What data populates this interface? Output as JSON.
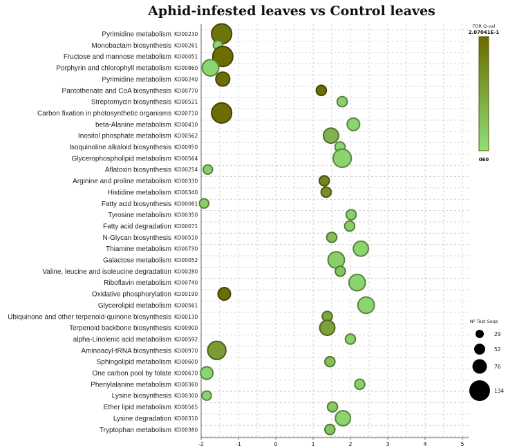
{
  "chart_data": {
    "type": "scatter",
    "title": "Aphid-infested leaves vs Control leaves",
    "xlim": [
      -2,
      5.2
    ],
    "x_ticks": [
      "-2",
      "-1",
      "0",
      "1",
      "2",
      "3",
      "4",
      "5"
    ],
    "grid": true,
    "color_legend": {
      "title": "FDR Q-val",
      "max_label": "2.07041E-1",
      "min_label": "0E0",
      "max_color": "#6b6a00",
      "min_color": "#8fe07a",
      "placement": "top-right"
    },
    "size_legend": {
      "title": "Nº Test Seqs",
      "entries": [
        "29",
        "52",
        "76",
        "134"
      ],
      "placement": "right"
    },
    "points": [
      {
        "pathway": "Pyrimidine metabolism",
        "code": "KO00230",
        "x": -1.45,
        "size": 134,
        "q": 0.19
      },
      {
        "pathway": "Monobactam biosynthesis",
        "code": "KO00261",
        "x": -1.55,
        "size": 29,
        "q": 0.02
      },
      {
        "pathway": "Fructose and mannose metabolism",
        "code": "KO00051",
        "x": -1.42,
        "size": 134,
        "q": 0.2
      },
      {
        "pathway": "Porphyrin and chlorophyll metabolism",
        "code": "KO00860",
        "x": -1.75,
        "size": 90,
        "q": 0.02
      },
      {
        "pathway": "Pyrimidine metabolism",
        "code": "KO00240",
        "x": -1.42,
        "size": 65,
        "q": 0.2
      },
      {
        "pathway": "Pantothenate and CoA biosynthesis",
        "code": "KO00770",
        "x": 1.22,
        "size": 34,
        "q": 0.2
      },
      {
        "pathway": "Streptomycin biosynthesis",
        "code": "KO00521",
        "x": 1.78,
        "size": 34,
        "q": 0.03
      },
      {
        "pathway": "Carbon fixation in photosynthetic organisms",
        "code": "KO00710",
        "x": -1.45,
        "size": 134,
        "q": 0.2
      },
      {
        "pathway": "beta-Alanine metabolism",
        "code": "KO00410",
        "x": 2.08,
        "size": 52,
        "q": 0.02
      },
      {
        "pathway": "Inositol phosphate metabolism",
        "code": "KO00562",
        "x": 1.48,
        "size": 76,
        "q": 0.08
      },
      {
        "pathway": "Isoquinoline alkaloid biosynthesis",
        "code": "KO00950",
        "x": 1.72,
        "size": 34,
        "q": 0.02
      },
      {
        "pathway": "Glycerophospholipid metabolism",
        "code": "KO00564",
        "x": 1.78,
        "size": 110,
        "q": 0.02
      },
      {
        "pathway": "Aflatoxin biosynthesis",
        "code": "KO00254",
        "x": -1.82,
        "size": 29,
        "q": 0.03
      },
      {
        "pathway": "Arginine and proline metabolism",
        "code": "KO00330",
        "x": 1.3,
        "size": 34,
        "q": 0.16
      },
      {
        "pathway": "Histidine metabolism",
        "code": "KO00340",
        "x": 1.35,
        "size": 34,
        "q": 0.14
      },
      {
        "pathway": "Fatty acid biosynthesis",
        "code": "KO00061",
        "x": -1.92,
        "size": 29,
        "q": 0.03
      },
      {
        "pathway": "Tyrosine metabolism",
        "code": "KO00350",
        "x": 2.02,
        "size": 34,
        "q": 0.03
      },
      {
        "pathway": "Fatty acid degradation",
        "code": "KO00071",
        "x": 1.98,
        "size": 34,
        "q": 0.03
      },
      {
        "pathway": "N-Glycan biosynthesis",
        "code": "KO00510",
        "x": 1.5,
        "size": 34,
        "q": 0.06
      },
      {
        "pathway": "Thiamine metabolism",
        "code": "KO00730",
        "x": 2.28,
        "size": 76,
        "q": 0.02
      },
      {
        "pathway": "Galactose metabolism",
        "code": "KO00052",
        "x": 1.62,
        "size": 90,
        "q": 0.03
      },
      {
        "pathway": "Valine, leucine and isoleucine degradation",
        "code": "KO00280",
        "x": 1.73,
        "size": 34,
        "q": 0.05
      },
      {
        "pathway": "Riboflavin metabolism",
        "code": "KO00740",
        "x": 2.18,
        "size": 90,
        "q": 0.02
      },
      {
        "pathway": "Oxidative phosphorylation",
        "code": "KO00190",
        "x": -1.38,
        "size": 52,
        "q": 0.2
      },
      {
        "pathway": "Glycerolipid metabolism",
        "code": "KO00561",
        "x": 2.42,
        "size": 90,
        "q": 0.02
      },
      {
        "pathway": "Ubiquinone and other terpenoid-quinone biosynthesis",
        "code": "KO00130",
        "x": 1.38,
        "size": 34,
        "q": 0.1
      },
      {
        "pathway": "Terpenoid backbone biosynthesis",
        "code": "KO00900",
        "x": 1.38,
        "size": 76,
        "q": 0.11
      },
      {
        "pathway": "alpha-Linolenic acid metabolism",
        "code": "KO00592",
        "x": 2.0,
        "size": 34,
        "q": 0.03
      },
      {
        "pathway": "Aminoacyl-tRNA biosynthesis",
        "code": "KO00970",
        "x": -1.58,
        "size": 110,
        "q": 0.12
      },
      {
        "pathway": "Sphingolipid metabolism",
        "code": "KO00600",
        "x": 1.45,
        "size": 34,
        "q": 0.06
      },
      {
        "pathway": "One carbon pool by folate",
        "code": "KO00670",
        "x": -1.85,
        "size": 52,
        "q": 0.02
      },
      {
        "pathway": "Phenylalanine metabolism",
        "code": "KO00360",
        "x": 2.25,
        "size": 34,
        "q": 0.03
      },
      {
        "pathway": "Lysine biosynthesis",
        "code": "KO00300",
        "x": -1.85,
        "size": 29,
        "q": 0.02
      },
      {
        "pathway": "Ether lipid metabolism",
        "code": "KO00565",
        "x": 1.52,
        "size": 34,
        "q": 0.04
      },
      {
        "pathway": "Lysine degradation",
        "code": "KO00310",
        "x": 1.8,
        "size": 76,
        "q": 0.02
      },
      {
        "pathway": "Tryptophan metabolism",
        "code": "KO00380",
        "x": 1.45,
        "size": 34,
        "q": 0.05
      }
    ]
  }
}
